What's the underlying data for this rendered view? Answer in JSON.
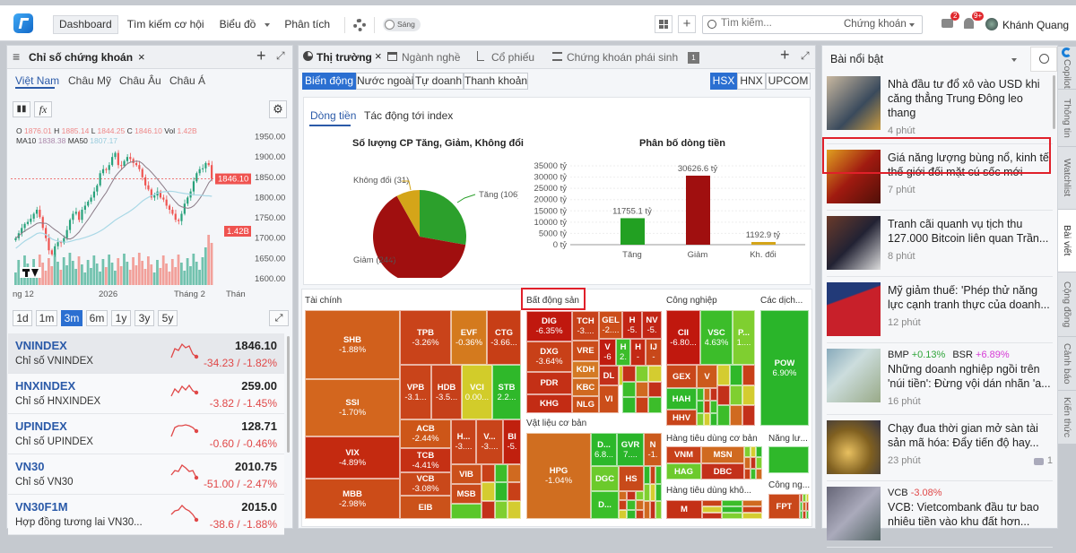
{
  "topbar": {
    "nav": [
      "Dashboard",
      "Tìm kiếm cơ hội",
      "Biểu đồ",
      "Phân tích"
    ],
    "theme_label": "Sáng",
    "search_placeholder": "Tìm kiếm...",
    "search_scope": "Chứng khoán",
    "chat_badge": "2",
    "bell_badge": "9+",
    "user": "Khánh Quang"
  },
  "left": {
    "title": "Chỉ số chứng khoán",
    "regions": [
      "Việt Nam",
      "Châu Mỹ",
      "Châu Âu",
      "Châu Á"
    ],
    "active_region": "Việt Nam",
    "ohlc": {
      "o_label": "O",
      "o": "1876.01",
      "h_label": "H",
      "h": "1885.14",
      "l_label": "L",
      "l": "1844.25",
      "c_label": "C",
      "c": "1846.10",
      "vol_label": "Vol",
      "vol": "1.42B",
      "ma10_label": "MA10",
      "ma10": "1838.38",
      "ma50_label": "MA50",
      "ma50": "1807.17"
    },
    "price_ticks": [
      "1950.00",
      "1900.00",
      "1850.00",
      "1800.00",
      "1750.00",
      "1700.00",
      "1650.00",
      "1600.00"
    ],
    "last_price": "1846.10",
    "last_vol": "1.42B",
    "x_ticks": [
      "ng 12",
      "2026",
      "Tháng 2",
      "Thán"
    ],
    "ranges": [
      "1d",
      "1m",
      "3m",
      "6m",
      "1y",
      "3y",
      "5y"
    ],
    "active_range": "3m",
    "indices": [
      {
        "code": "VNINDEX",
        "name": "Chỉ số VNINDEX",
        "value": "1846.10",
        "change": "-34.23 / -1.82%"
      },
      {
        "code": "HNXINDEX",
        "name": "Chỉ số HNXINDEX",
        "value": "259.00",
        "change": "-3.82 / -1.45%"
      },
      {
        "code": "UPINDEX",
        "name": "Chỉ số UPINDEX",
        "value": "128.71",
        "change": "-0.60 / -0.46%"
      },
      {
        "code": "VN30",
        "name": "Chỉ số VN30",
        "value": "2010.75",
        "change": "-51.00 / -2.47%"
      },
      {
        "code": "VN30F1M",
        "name": "Hợp đồng tương lai VN30...",
        "value": "2015.0",
        "change": "-38.6 / -1.88%"
      }
    ]
  },
  "middle": {
    "tabs": [
      "Thị trường",
      "Ngành nghề",
      "Cổ phiếu",
      "Chứng khoán phái sinh"
    ],
    "tab_badge": "1",
    "subtabs": [
      "Biến động",
      "Nước ngoài",
      "Tự doanh",
      "Thanh khoản"
    ],
    "exchanges": [
      "HSX",
      "HNX",
      "UPCOM"
    ],
    "flow_tabs": [
      "Dòng tiền",
      "Tác động tới index"
    ],
    "treemap": [
      {
        "name": "Tài chính",
        "tiles": [
          [
            "SHB",
            "-1.88%",
            "#d1601c"
          ],
          [
            "SSI",
            "-1.70%",
            "#d3661e"
          ],
          [
            "VIX",
            "-4.89%",
            "#c42a10"
          ],
          [
            "MBB",
            "-2.98%",
            "#cc4c18"
          ],
          [
            "TPB",
            "-3.26%",
            "#c9431a"
          ],
          [
            "EVF",
            "-0.36%",
            "#d47a1e"
          ],
          [
            "CTG",
            "-3.66...",
            "#c73e16"
          ],
          [
            "VPB",
            "-3.1...",
            "#c9441a"
          ],
          [
            "HDB",
            "-3.5...",
            "#c6401a"
          ],
          [
            "VCI",
            "0.00...",
            "#d2cc2a"
          ],
          [
            "STB",
            "2.2...",
            "#2fb82a"
          ],
          [
            "ACB",
            "-2.44%",
            "#cd5618"
          ],
          [
            "TCB",
            "-4.41%",
            "#c53014"
          ],
          [
            "VCB",
            "-3.08%",
            "#c9481a"
          ],
          [
            "EIB",
            "",
            "#cb521a"
          ],
          [
            "H...",
            "-3....",
            "#c7421a"
          ],
          [
            "V...",
            "-3....",
            "#c8441a"
          ],
          [
            "BI",
            "-5.",
            "#c0200e"
          ],
          [
            "VIB",
            "",
            "#cb501a"
          ],
          [
            "MSB",
            "",
            "#c94a1a"
          ],
          [
            "",
            "",
            "#5ac72a"
          ]
        ]
      },
      {
        "name": "Bất động sản",
        "tiles": [
          [
            "DIG",
            "-6.35%",
            "#c0180e"
          ],
          [
            "DXG",
            "-3.64%",
            "#c84018"
          ],
          [
            "PDR",
            "",
            "#c43016"
          ],
          [
            "KHG",
            "",
            "#c32c14"
          ],
          [
            "TCH",
            "-3....",
            "#c7421a"
          ],
          [
            "VRE",
            "",
            "#cb4c1a"
          ],
          [
            "KDH",
            "",
            "#d47a24"
          ],
          [
            "KBC",
            "",
            "#d06a20"
          ],
          [
            "NLG",
            "",
            "#cb5018"
          ],
          [
            "GEL",
            "-2....",
            "#cc4e1a"
          ],
          [
            "H",
            "-5.",
            "#c22414"
          ],
          [
            "NV",
            "-5.",
            "#c22616"
          ],
          [
            "V",
            "-6",
            "#c01c10"
          ],
          [
            "H",
            "2.",
            "#3cbd2a"
          ],
          [
            "H",
            "-",
            "#c32a14"
          ],
          [
            "IJ",
            "-",
            "#c8481a"
          ],
          [
            "DL",
            "",
            "#c3301a"
          ],
          [
            "",
            "",
            "#d4cc30"
          ],
          [
            "VI",
            "",
            "#cb4e1a"
          ]
        ]
      },
      {
        "name": "Vật liệu cơ bản",
        "tiles": [
          [
            "HPG",
            "-1.04%",
            "#d06e20"
          ],
          [
            "D...",
            "6.8...",
            "#2cb82a"
          ],
          [
            "GVR",
            "7....",
            "#2ab52a"
          ],
          [
            "N",
            "-1.",
            "#cb5a1c"
          ],
          [
            "DGC",
            "",
            "#6cca2c"
          ],
          [
            "HS",
            "",
            "#c84a1a"
          ],
          [
            "D...",
            "",
            "#3abf2a"
          ]
        ]
      },
      {
        "name": "Công nghiệp",
        "tiles": [
          [
            "CII",
            "-6.80...",
            "#c0180e"
          ],
          [
            "VSC",
            "4.63%",
            "#3cbd2a"
          ],
          [
            "P...",
            "1....",
            "#7fcf30"
          ],
          [
            "GEX",
            "",
            "#c9461a"
          ],
          [
            "V",
            "",
            "#cc5a1c"
          ],
          [
            "HAH",
            "",
            "#2fb82a"
          ],
          [
            "HHV",
            "",
            "#c8441a"
          ]
        ]
      },
      {
        "name": "Các dịch...",
        "tiles": [
          [
            "POW",
            "6.90%",
            "#2ab52a"
          ]
        ]
      },
      {
        "name": "Hàng tiêu dùng cơ bản",
        "tiles": [
          [
            "VNM",
            "",
            "#c8401a"
          ],
          [
            "MSN",
            "",
            "#d06a20"
          ],
          [
            "HAG",
            "",
            "#6cca2c"
          ],
          [
            "DBC",
            "",
            "#c3301a"
          ]
        ]
      },
      {
        "name": "Năng lư...",
        "tiles": [
          [
            "",
            "",
            "#2fb82a"
          ]
        ]
      },
      {
        "name": "Hàng tiêu dùng khô...",
        "tiles": [
          [
            "M",
            "",
            "#c43016"
          ]
        ]
      },
      {
        "name": "Công ng...",
        "tiles": [
          [
            "FPT",
            "",
            "#c9481a"
          ]
        ]
      }
    ]
  },
  "right": {
    "title": "Bài nổi bật",
    "news": [
      {
        "title": "Nhà đầu tư đổ xô vào USD khi căng thẳng Trung Đông leo thang",
        "time": "4 phút"
      },
      {
        "title": "Giá năng lượng bùng nổ, kinh tế thế giới đối mặt cú sốc mới",
        "time": "7 phút"
      },
      {
        "title": "Tranh cãi quanh vụ tịch thu 127.000 Bitcoin liên quan Trần...",
        "time": "8 phút"
      },
      {
        "title": "Mỹ giảm thuế: 'Phép thử năng lực cạnh tranh thực của doanh...",
        "time": "12 phút"
      },
      {
        "tickers": [
          [
            "BMP",
            "+0.13%",
            "#2fa53a"
          ],
          [
            "BSR",
            "+6.89%",
            "#d63ad6"
          ]
        ],
        "title": "Những doanh nghiệp ngồi trên 'núi tiền': Đừng vội dán nhãn 'a...",
        "time": "16 phút"
      },
      {
        "title": "Chạy đua thời gian mở sàn tài sản mã hóa: Đẩy tiến độ hay...",
        "time": "23 phút",
        "comments": "1"
      },
      {
        "tickers": [
          [
            "VCB",
            "-3.08%",
            "#e04848"
          ]
        ],
        "title": "VCB: Vietcombank đầu tư bao nhiêu tiền vào khu đất hơn..."
      }
    ],
    "side_tabs": [
      "Copilot",
      "Thông tin",
      "Watchlist",
      "Bài viết",
      "Cộng đồng",
      "Cảnh báo",
      "Kiến thức"
    ],
    "active_side_tab": "Bài viết"
  },
  "chart_data": [
    {
      "type": "pie",
      "title": "Số lượng CP Tăng, Giảm, Không đổi",
      "slices": [
        {
          "label": "Tăng (106)",
          "value": 106,
          "color": "#2ca02c"
        },
        {
          "label": "Giảm (244)",
          "value": 244,
          "color": "#a00f0f"
        },
        {
          "label": "Không đổi (31)",
          "value": 31,
          "color": "#d4a519"
        }
      ]
    },
    {
      "type": "bar",
      "title": "Phân bố dòng tiền",
      "categories": [
        "Tăng",
        "Giảm",
        "Kh. đổi"
      ],
      "values": [
        11755.1,
        30626.6,
        1192.9
      ],
      "labels": [
        "11755.1 tỷ",
        "30626.6 tỷ",
        "1192.9 tỷ"
      ],
      "colors": [
        "#22a022",
        "#a00f0f",
        "#d4a519"
      ],
      "ylim": [
        0,
        35000
      ],
      "yticks": [
        "35000 tỷ",
        "30000 tỷ",
        "25000 tỷ",
        "20000 tỷ",
        "15000 tỷ",
        "10000 tỷ",
        "5000 tỷ",
        "0 tỷ"
      ]
    },
    {
      "type": "candlestick",
      "title": "VNINDEX",
      "closes": [
        1700,
        1712,
        1725,
        1735,
        1740,
        1748,
        1760,
        1770,
        1752,
        1725,
        1700,
        1670,
        1660,
        1680,
        1690,
        1688,
        1700,
        1720,
        1745,
        1760,
        1765,
        1745,
        1770,
        1780,
        1790,
        1800,
        1815,
        1830,
        1860,
        1870,
        1868,
        1880,
        1900,
        1910,
        1880,
        1878,
        1890,
        1900,
        1895,
        1885,
        1880,
        1870,
        1850,
        1830,
        1820,
        1800,
        1805,
        1815,
        1800,
        1795,
        1780,
        1770,
        1760,
        1745,
        1742,
        1760,
        1785,
        1800,
        1815,
        1840,
        1860,
        1870,
        1872,
        1885,
        1880,
        1846.1
      ],
      "ylim": [
        1580,
        1960
      ],
      "grid": false
    }
  ]
}
